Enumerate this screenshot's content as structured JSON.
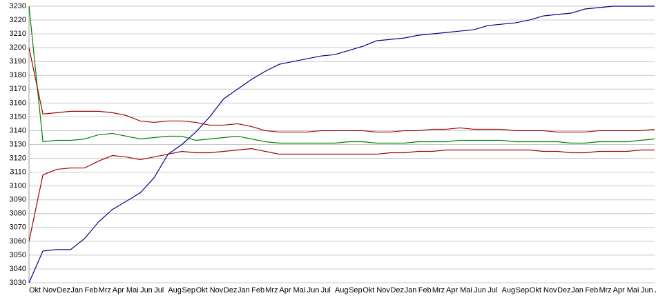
{
  "chart_data": {
    "type": "line",
    "categories": [
      "Okt",
      "Nov",
      "Dez",
      "Jan",
      "Feb",
      "Mrz",
      "Apr",
      "Mai",
      "Jun",
      "Jul",
      "Aug",
      "Sep",
      "Okt",
      "Nov",
      "Dez",
      "Jan",
      "Feb",
      "Mrz",
      "Apr",
      "Mai",
      "Jun",
      "Jul",
      "Aug",
      "Sep",
      "Okt",
      "Nov",
      "Dez",
      "Jan",
      "Feb",
      "Mrz",
      "Apr",
      "Mai",
      "Jun",
      "Jul",
      "Aug",
      "Sep",
      "Okt",
      "Nov",
      "Dez",
      "Jan",
      "Feb",
      "Mrz",
      "Apr",
      "Mai",
      "Jun",
      "Jul"
    ],
    "series": [
      {
        "color": "#000080",
        "values": [
          3030,
          3053,
          3054,
          3054,
          3062,
          3074,
          3083,
          3089,
          3095,
          3106,
          3123,
          3130,
          3139,
          3150,
          3163,
          3170,
          3177,
          3183,
          3188,
          3190,
          3192,
          3194,
          3195,
          3198,
          3201,
          3205,
          3206,
          3207,
          3209,
          3210,
          3211,
          3212,
          3213,
          3216,
          3217,
          3218,
          3220,
          3223,
          3224,
          3225,
          3228,
          3229,
          3230,
          3230,
          3230,
          3230
        ]
      },
      {
        "color": "#008000",
        "values": [
          3230,
          3132,
          3133,
          3133,
          3134,
          3137,
          3138,
          3136,
          3134,
          3135,
          3136,
          3136,
          3133,
          3134,
          3135,
          3136,
          3134,
          3132,
          3131,
          3131,
          3131,
          3131,
          3131,
          3132,
          3132,
          3131,
          3131,
          3131,
          3132,
          3132,
          3132,
          3133,
          3133,
          3133,
          3133,
          3132,
          3132,
          3132,
          3132,
          3131,
          3131,
          3132,
          3132,
          3132,
          3133,
          3134
        ]
      },
      {
        "color": "#a00000",
        "values": [
          3200,
          3152,
          3153,
          3154,
          3154,
          3154,
          3153,
          3151,
          3147,
          3146,
          3147,
          3147,
          3146,
          3144,
          3144,
          3145,
          3143,
          3140,
          3139,
          3139,
          3139,
          3140,
          3140,
          3140,
          3140,
          3139,
          3139,
          3140,
          3140,
          3141,
          3141,
          3142,
          3141,
          3141,
          3141,
          3140,
          3140,
          3140,
          3139,
          3139,
          3139,
          3140,
          3140,
          3140,
          3140,
          3141
        ]
      },
      {
        "color": "#a00000",
        "values": [
          3060,
          3108,
          3112,
          3113,
          3113,
          3118,
          3122,
          3121,
          3119,
          3121,
          3123,
          3125,
          3124,
          3124,
          3125,
          3126,
          3127,
          3125,
          3123,
          3123,
          3123,
          3123,
          3123,
          3123,
          3123,
          3123,
          3124,
          3124,
          3125,
          3125,
          3126,
          3126,
          3126,
          3126,
          3126,
          3126,
          3126,
          3125,
          3125,
          3124,
          3124,
          3125,
          3125,
          3125,
          3126,
          3126
        ]
      }
    ],
    "ylim": [
      3030,
      3230
    ],
    "yticks": [
      3030,
      3040,
      3050,
      3060,
      3070,
      3080,
      3090,
      3100,
      3110,
      3120,
      3130,
      3140,
      3150,
      3160,
      3170,
      3180,
      3190,
      3200,
      3210,
      3220,
      3230
    ],
    "grid": true
  }
}
